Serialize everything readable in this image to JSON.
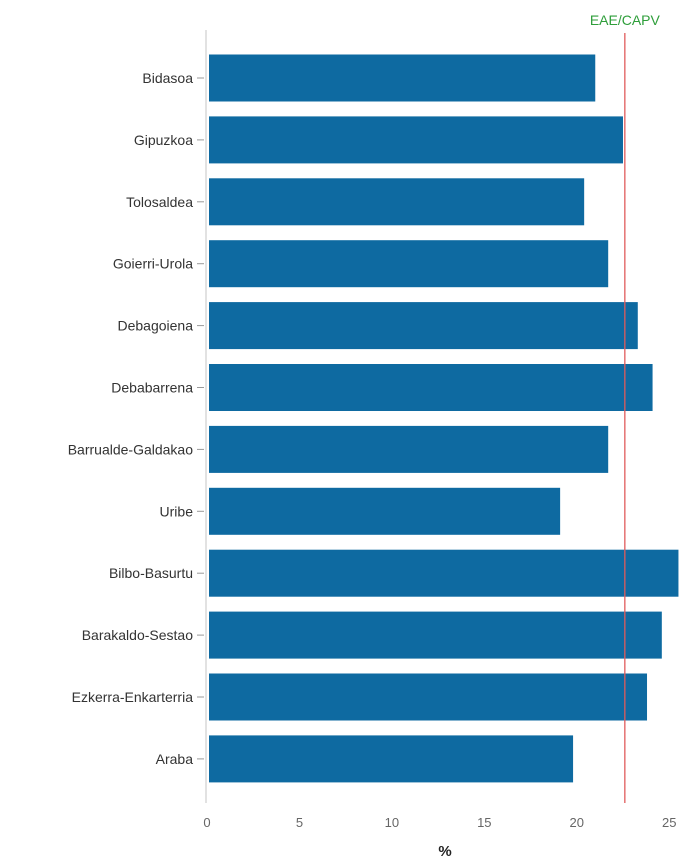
{
  "chart_data": {
    "type": "bar",
    "orientation": "horizontal",
    "categories": [
      "Bidasoa",
      "Gipuzkoa",
      "Tolosaldea",
      "Goierri-Urola",
      "Debagoiena",
      "Debabarrena",
      "Barrualde-Galdakao",
      "Uribe",
      "Bilbo-Basurtu",
      "Barakaldo-Sestao",
      "Ezkerra-Enkarterria",
      "Araba"
    ],
    "values": [
      21.0,
      22.5,
      20.4,
      21.7,
      23.3,
      24.1,
      21.7,
      19.1,
      25.5,
      24.6,
      23.8,
      19.8
    ],
    "xlabel": "%",
    "xlim": [
      0,
      25.8
    ],
    "xticks": [
      "0",
      "5",
      "10",
      "15",
      "20",
      "25"
    ],
    "reference_line": {
      "label": "EAE/CAPV",
      "value": 22.6,
      "line_color": "#e05b5b",
      "label_color": "#2e9e3a"
    },
    "bar_color": "#0e6aa1",
    "grid": false
  }
}
